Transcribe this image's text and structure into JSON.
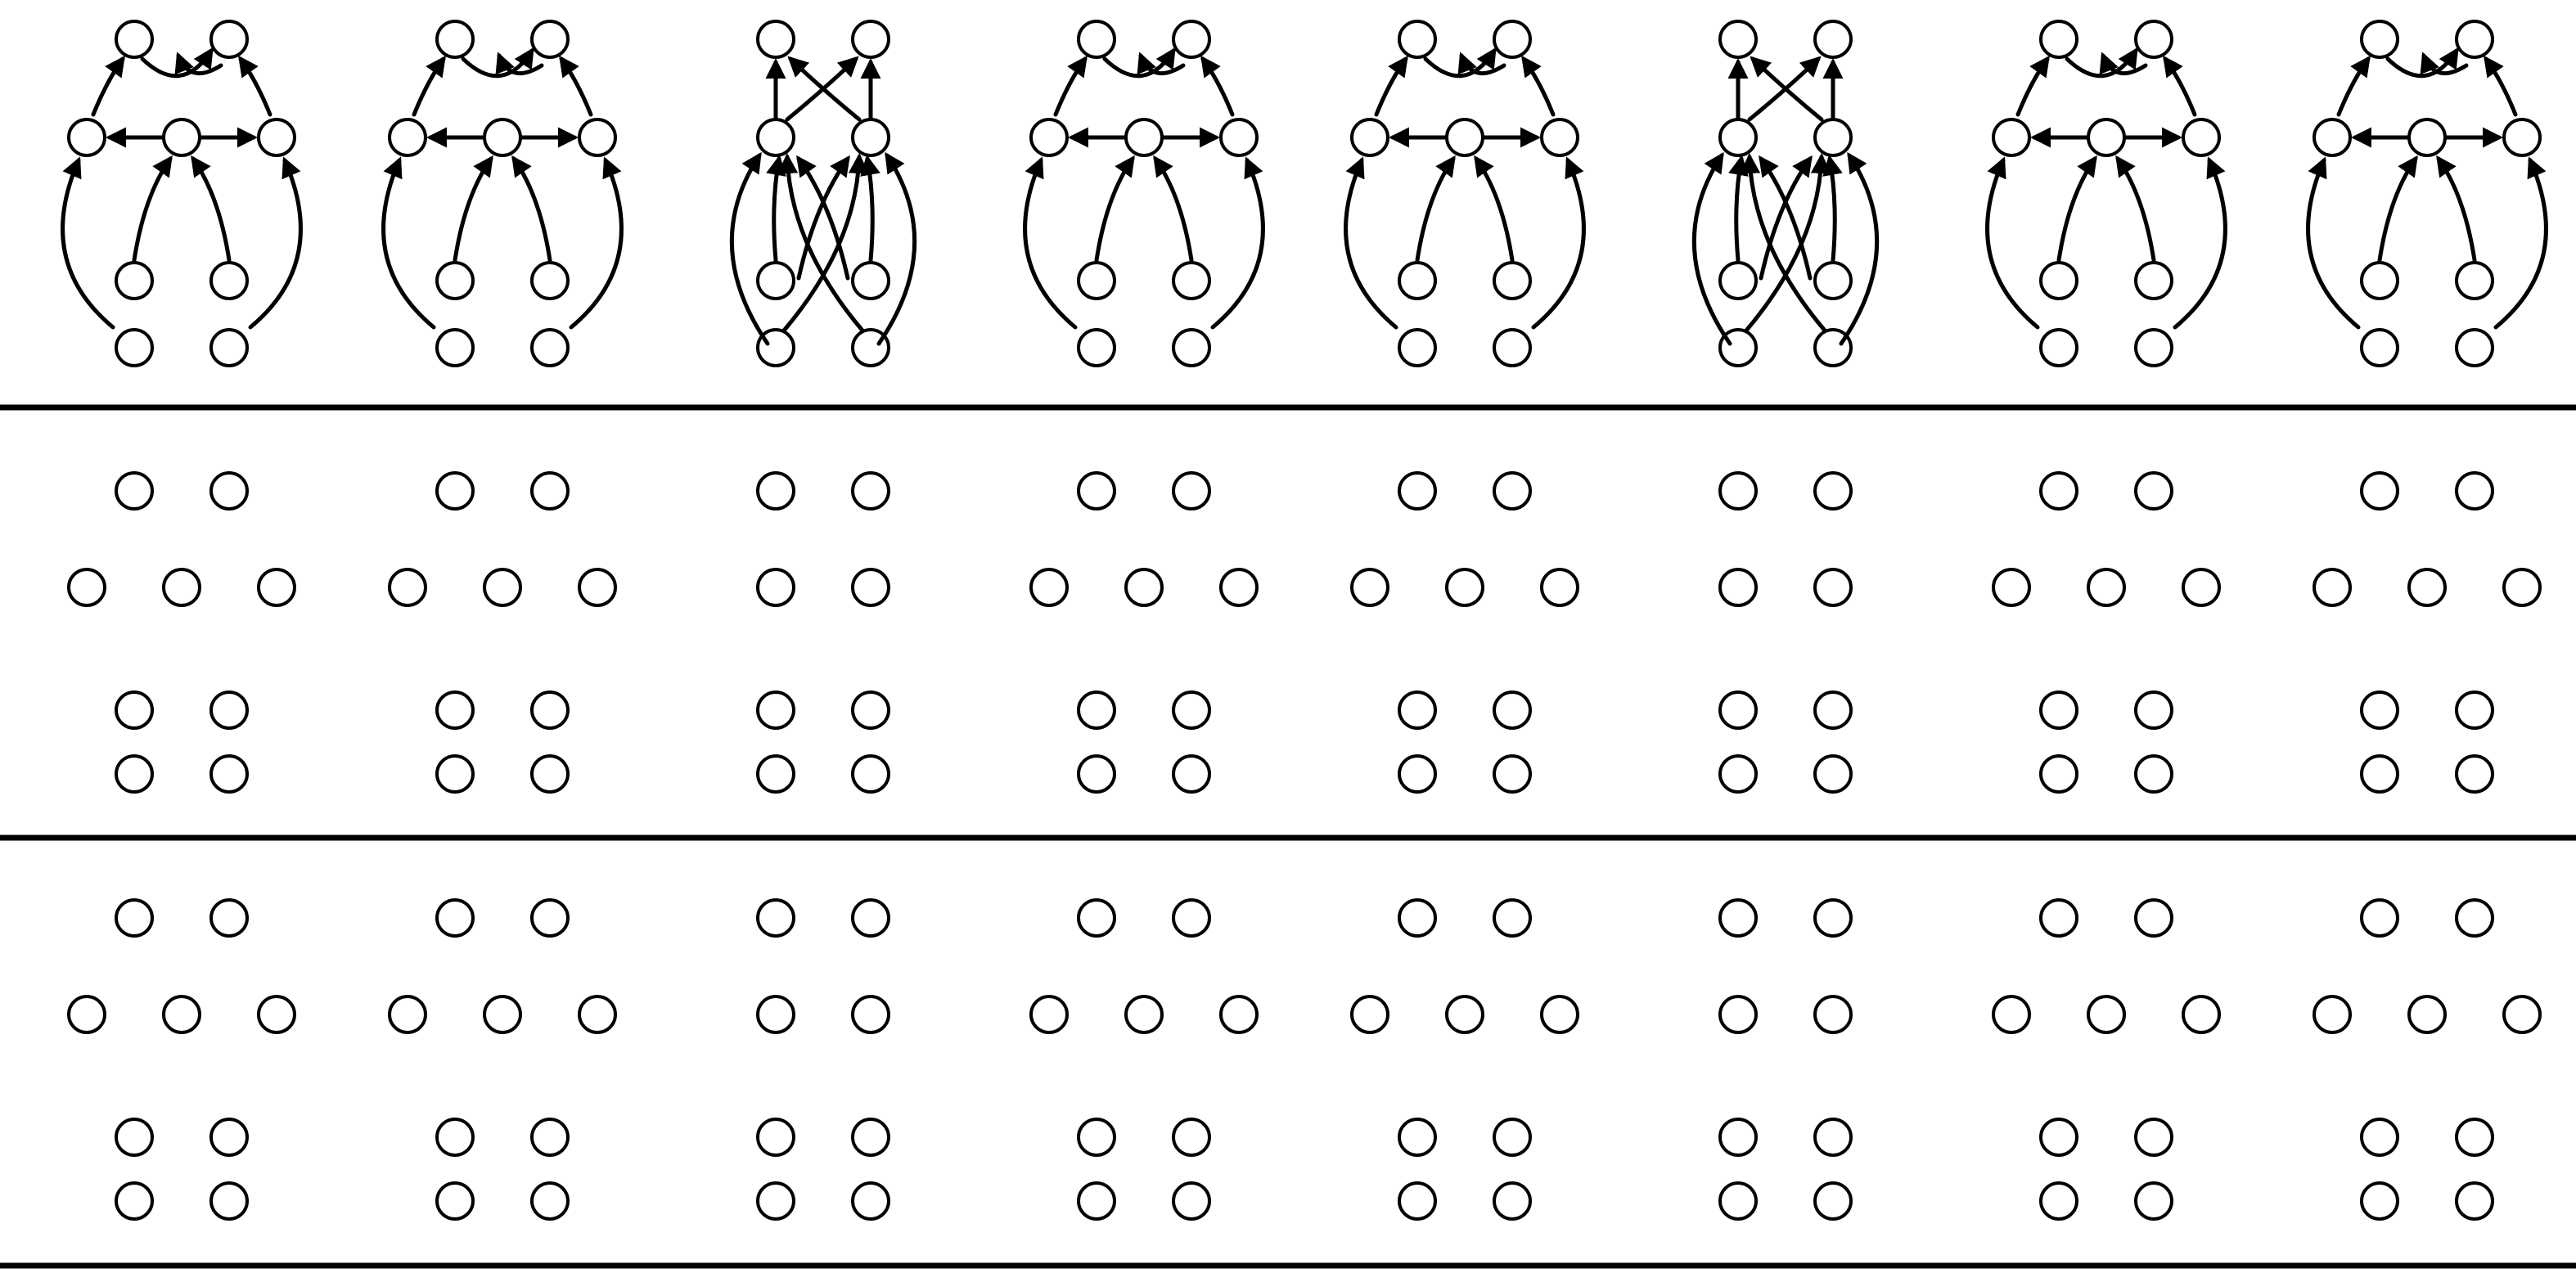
{
  "colors": {
    "ink": "#000000",
    "background": "#ffffff"
  },
  "rows": [
    {
      "id": "top",
      "arrows": true
    },
    {
      "id": "middle",
      "arrows": false
    },
    {
      "id": "bottom",
      "arrows": false
    }
  ],
  "panels": [
    {
      "index": 1,
      "type": "three-hub"
    },
    {
      "index": 2,
      "type": "three-hub"
    },
    {
      "index": 3,
      "type": "two-cross"
    },
    {
      "index": 4,
      "type": "three-hub"
    },
    {
      "index": 5,
      "type": "three-hub"
    },
    {
      "index": 6,
      "type": "two-cross"
    },
    {
      "index": 7,
      "type": "three-hub"
    },
    {
      "index": 8,
      "type": "three-hub"
    }
  ]
}
